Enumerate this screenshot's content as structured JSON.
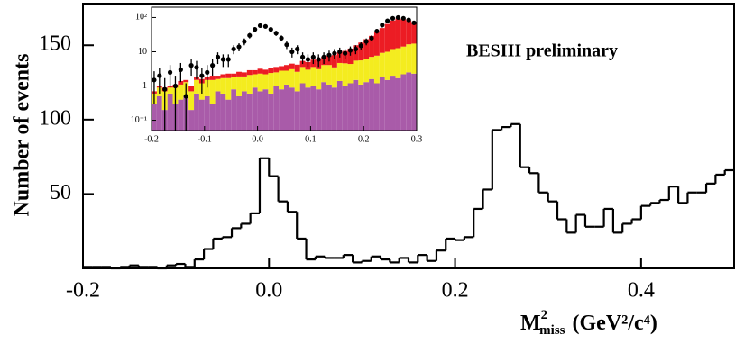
{
  "chart_data": [
    {
      "type": "histogram",
      "color": "#000000",
      "ylabel": "Number of events",
      "xlabel": {
        "symbol": "M",
        "superscript": "2",
        "subscript": "miss",
        "unit": "(GeV²/c⁴)"
      },
      "annotation": "BESIII preliminary",
      "xlim": [
        -0.2,
        0.5
      ],
      "ylim": [
        0,
        178
      ],
      "xticks": [
        -0.2,
        {
          "value": 0,
          "label": "0.0"
        },
        0.2,
        0.4
      ],
      "yticks": [
        50,
        100,
        150
      ],
      "bins": [
        -0.2,
        -0.19,
        -0.18,
        -0.17,
        -0.16,
        -0.15,
        -0.14,
        -0.13,
        -0.12,
        -0.11,
        -0.1,
        -0.09,
        -0.08,
        -0.07,
        -0.06,
        -0.05,
        -0.04,
        -0.03,
        -0.02,
        -0.01,
        0,
        0.01,
        0.02,
        0.03,
        0.04,
        0.05,
        0.06,
        0.07,
        0.08,
        0.09,
        0.1,
        0.11,
        0.12,
        0.13,
        0.14,
        0.15,
        0.16,
        0.17,
        0.18,
        0.19,
        0.2,
        0.21,
        0.22,
        0.23,
        0.24,
        0.25,
        0.26,
        0.27,
        0.28,
        0.29,
        0.3,
        0.31,
        0.32,
        0.33,
        0.34,
        0.35,
        0.36,
        0.37,
        0.38,
        0.39,
        0.4,
        0.41,
        0.42,
        0.43,
        0.44,
        0.45,
        0.46,
        0.47,
        0.48,
        0.49,
        0.5
      ],
      "values": [
        1,
        1,
        1,
        0,
        1,
        2,
        1,
        1,
        0,
        2,
        3,
        1,
        6,
        13,
        20,
        21,
        27,
        30,
        37,
        74,
        62,
        45,
        38,
        20,
        6,
        8,
        7,
        7,
        9,
        4,
        5,
        8,
        6,
        4,
        7,
        4,
        9,
        5,
        12,
        20,
        19,
        21,
        40,
        53,
        93,
        95,
        97,
        68,
        64,
        51,
        45,
        33,
        24,
        36,
        28,
        28,
        40,
        24,
        30,
        33,
        42,
        44,
        46,
        55,
        44,
        51,
        51,
        57,
        63,
        66
      ]
    },
    {
      "type": "stacked-histogram",
      "log_y": true,
      "xlim": [
        -0.2,
        0.3
      ],
      "ylim": [
        0.05,
        200
      ],
      "xticks": [
        -0.2,
        -0.1,
        {
          "value": 0,
          "label": "0.0"
        },
        0.1,
        0.2,
        0.3
      ],
      "yticks": [
        {
          "value": 0.1,
          "label": "10⁻¹"
        },
        1,
        10,
        {
          "value": 100,
          "label": "10²"
        }
      ],
      "bins": [
        -0.2,
        -0.19,
        -0.18,
        -0.17,
        -0.16,
        -0.15,
        -0.14,
        -0.13,
        -0.12,
        -0.11,
        -0.1,
        -0.09,
        -0.08,
        -0.07,
        -0.06,
        -0.05,
        -0.04,
        -0.03,
        -0.02,
        -0.01,
        0,
        0.01,
        0.02,
        0.03,
        0.04,
        0.05,
        0.06,
        0.07,
        0.08,
        0.09,
        0.1,
        0.11,
        0.12,
        0.13,
        0.14,
        0.15,
        0.16,
        0.17,
        0.18,
        0.19,
        0.2,
        0.21,
        0.22,
        0.23,
        0.24,
        0.25,
        0.26,
        0.27,
        0.28,
        0.29,
        0.3
      ],
      "series": [
        {
          "color": "#a95ba9",
          "values": [
            0.3,
            0.5,
            0.2,
            0.6,
            0.3,
            0.4,
            0.5,
            0.2,
            0.6,
            0.4,
            0.5,
            0.3,
            0.7,
            0.6,
            0.4,
            0.8,
            0.5,
            0.7,
            0.6,
            0.9,
            0.7,
            0.8,
            0.6,
            1.0,
            0.8,
            1.1,
            0.9,
            0.7,
            1.2,
            0.9,
            1.0,
            0.8,
            1.3,
            1.1,
            0.9,
            1.4,
            1.0,
            1.2,
            1.5,
            1.1,
            1.3,
            1.6,
            1.2,
            1.8,
            1.5,
            2.0,
            1.7,
            2.2,
            2.5,
            2.3
          ]
        },
        {
          "color": "#f4ec1f",
          "values": [
            0.3,
            0.4,
            0.5,
            0.3,
            0.6,
            0.7,
            0.8,
            0.5,
            0.9,
            0.8,
            1.0,
            1.2,
            0.9,
            1.1,
            1.3,
            1.0,
            1.4,
            1.2,
            1.5,
            1.3,
            1.6,
            1.4,
            1.8,
            1.5,
            2.0,
            1.7,
            2.2,
            1.9,
            2.4,
            2.1,
            2.6,
            2.3,
            2.8,
            3.0,
            2.6,
            3.3,
            3.6,
            3.2,
            4.0,
            4.5,
            5.0,
            5.5,
            6.5,
            7.5,
            8.5,
            10,
            11,
            12,
            14,
            15
          ]
        },
        {
          "color": "#ec1c24",
          "values": [
            0.1,
            0.1,
            0.2,
            0.1,
            0.2,
            0.3,
            0.2,
            0.3,
            0.3,
            0.4,
            0.3,
            0.5,
            0.4,
            0.5,
            0.6,
            0.5,
            0.7,
            0.6,
            0.8,
            0.7,
            0.9,
            0.8,
            1.0,
            1.1,
            1.0,
            1.3,
            1.4,
            1.6,
            1.8,
            2.0,
            2.3,
            2.7,
            3,
            3.5,
            4.5,
            5,
            6,
            8,
            10,
            13,
            17,
            22,
            30,
            40,
            55,
            70,
            80,
            75,
            65,
            50
          ]
        }
      ],
      "data_points": {
        "color": "#000000",
        "values": [
          1.5,
          2.0,
          0.8,
          2.5,
          1.0,
          3.0,
          0.5,
          4.0,
          3.5,
          2.0,
          2.5,
          4.0,
          7.0,
          6.0,
          6.0,
          12,
          14,
          20,
          30,
          45,
          58,
          55,
          45,
          35,
          25,
          16,
          10,
          12,
          7,
          6,
          7,
          6,
          7,
          8,
          9,
          10,
          9,
          11,
          12,
          15,
          20,
          25,
          40,
          60,
          80,
          95,
          100,
          95,
          85,
          70
        ],
        "errors": [
          1.2,
          1.4,
          0.9,
          1.6,
          1,
          1.7,
          0.7,
          2,
          1.9,
          1.4,
          1.6,
          2,
          2.6,
          2.4,
          2.4,
          3.5,
          3.7,
          4.5,
          5.5,
          6.7,
          7.6,
          7.4,
          6.7,
          5.9,
          5,
          4,
          3.2,
          3.5,
          2.6,
          2.4,
          2.6,
          2.4,
          2.6,
          2.8,
          3,
          3.2,
          3,
          3.3,
          3.5,
          3.9,
          4.5,
          5,
          6.3,
          7.7,
          8.9,
          9.7,
          10,
          9.7,
          9.2,
          8.4
        ]
      }
    }
  ]
}
